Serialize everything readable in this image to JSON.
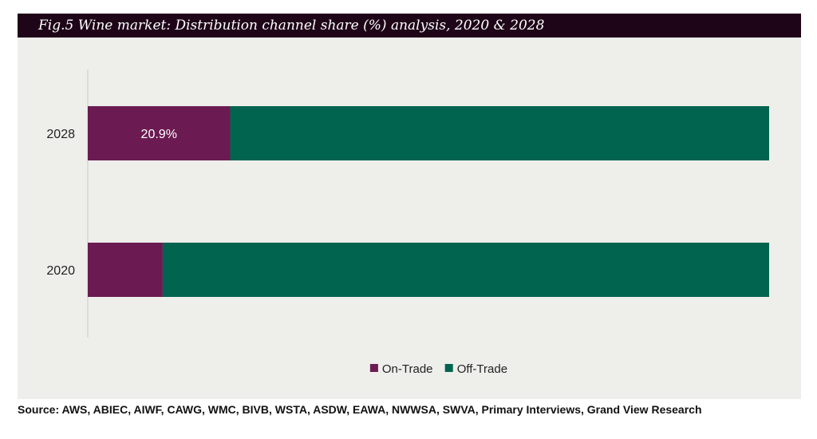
{
  "title": "Fig.5  Wine market: Distribution channel share (%) analysis, 2020 & 2028",
  "source": "Source: AWS, ABIEC, AIWF, CAWG, WMC, BIVB, WSTA, ASDW, EAWA, NWWSA, SWVA, Primary Interviews, Grand View Research",
  "chart_data": {
    "type": "bar",
    "orientation": "horizontal",
    "stacked": "100%",
    "categories": [
      "2028",
      "2020"
    ],
    "series": [
      {
        "name": "On-Trade",
        "values": [
          20.9,
          11.0
        ],
        "color": "#6b1b52"
      },
      {
        "name": "Off-Trade",
        "values": [
          79.1,
          89.0
        ],
        "color": "#00644f"
      }
    ],
    "data_labels": [
      {
        "series": "On-Trade",
        "category": "2028",
        "text": "20.9%"
      }
    ],
    "xlim": [
      0,
      100
    ],
    "grid": false,
    "legend": {
      "position": "bottom-center"
    }
  }
}
